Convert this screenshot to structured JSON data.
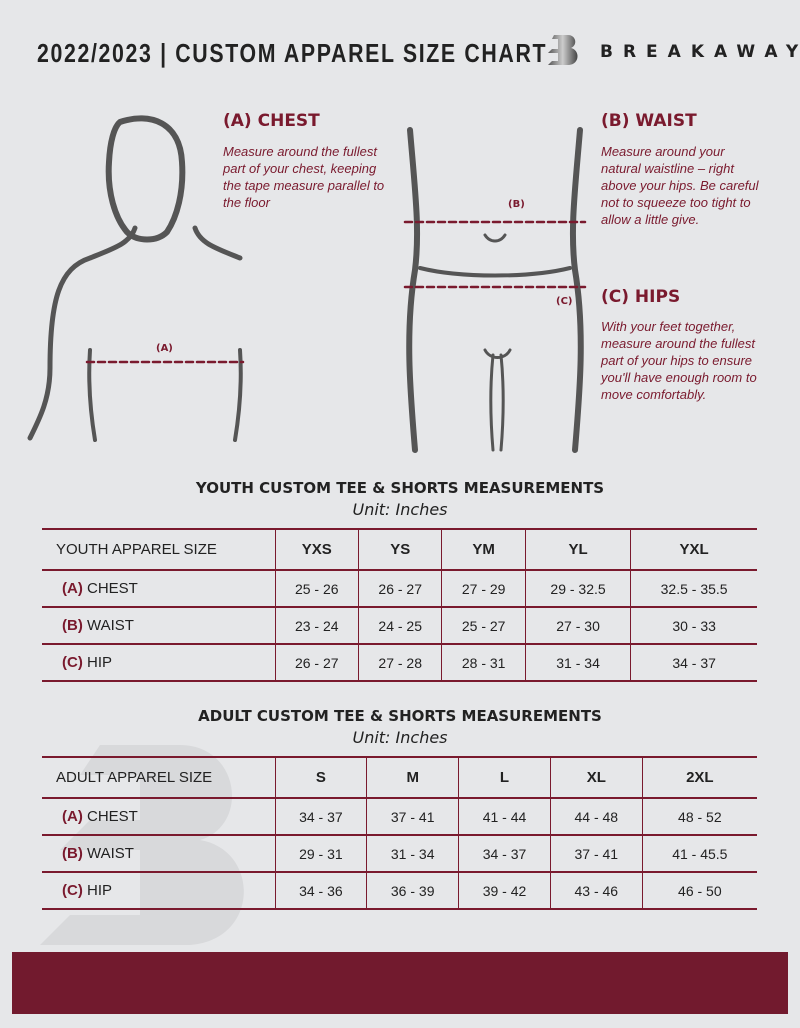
{
  "header": {
    "title": "2022/2023  |  CUSTOM APPAREL SIZE CHART",
    "brand": "BREAKAWAY"
  },
  "guides": {
    "chest": {
      "heading": "(A) CHEST",
      "text": "Measure around the fullest part of your chest, keeping the tape measure parallel to the floor",
      "marker": "(A)"
    },
    "waist": {
      "heading": "(B) WAIST",
      "text": "Measure around your natural waistline – right above your hips. Be careful not to squeeze too tight to allow a little give.",
      "marker": "(B)"
    },
    "hips": {
      "heading": "(C) HIPS",
      "text": "With your feet together, measure around the fullest part of your hips to ensure you'll have enough room to move comfortably.",
      "marker": "(C)"
    }
  },
  "youth": {
    "title": "YOUTH CUSTOM TEE & SHORTS MEASUREMENTS",
    "unit": "Unit: Inches",
    "header": [
      "YOUTH APPAREL SIZE",
      "YXS",
      "YS",
      "YM",
      "YL",
      "YXL"
    ],
    "rows": [
      {
        "code": "(A)",
        "name": "CHEST",
        "values": [
          "25 - 26",
          "26 - 27",
          "27 - 29",
          "29 - 32.5",
          "32.5 - 35.5"
        ]
      },
      {
        "code": "(B)",
        "name": "WAIST",
        "values": [
          "23 - 24",
          "24 - 25",
          "25 - 27",
          "27 - 30",
          "30 - 33"
        ]
      },
      {
        "code": "(C)",
        "name": "HIP",
        "values": [
          "26 - 27",
          "27 - 28",
          "28 - 31",
          "31 - 34",
          "34 - 37"
        ]
      }
    ]
  },
  "adult": {
    "title": "ADULT CUSTOM TEE & SHORTS MEASUREMENTS",
    "unit": "Unit: Inches",
    "header": [
      "ADULT APPAREL SIZE",
      "S",
      "M",
      "L",
      "XL",
      "2XL"
    ],
    "rows": [
      {
        "code": "(A)",
        "name": "CHEST",
        "values": [
          "34 - 37",
          "37 - 41",
          "41 - 44",
          "44 - 48",
          "48 - 52"
        ]
      },
      {
        "code": "(B)",
        "name": "WAIST",
        "values": [
          "29 - 31",
          "31 - 34",
          "34 - 37",
          "37 - 41",
          "41 - 45.5"
        ]
      },
      {
        "code": "(C)",
        "name": "HIP",
        "values": [
          "34 - 36",
          "36 - 39",
          "39 - 42",
          "43 - 46",
          "46 - 50"
        ]
      }
    ]
  },
  "colors": {
    "accent": "#7a1a2e",
    "background": "#e6e7e9",
    "footer": "#721a2e"
  }
}
